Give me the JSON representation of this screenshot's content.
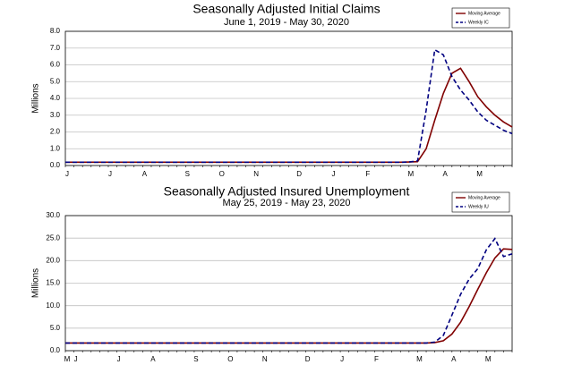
{
  "chart_data": [
    {
      "type": "line",
      "title": "Seasonally Adjusted Initial Claims",
      "subtitle": "June 1, 2019 - May 30, 2020",
      "y_label": "Millions",
      "categories": [
        "J",
        null,
        null,
        null,
        null,
        "J",
        null,
        null,
        null,
        "A",
        null,
        null,
        null,
        null,
        "S",
        null,
        null,
        null,
        "O",
        null,
        null,
        null,
        "N",
        null,
        null,
        null,
        null,
        "D",
        null,
        null,
        null,
        "J",
        null,
        null,
        null,
        "F",
        null,
        null,
        null,
        null,
        "M",
        null,
        null,
        null,
        "A",
        null,
        null,
        null,
        "M",
        null,
        null,
        null,
        null
      ],
      "series": [
        {
          "name": "Moving Average",
          "color": "#800000",
          "dash": false,
          "values": [
            0.2,
            0.2,
            0.2,
            0.2,
            0.2,
            0.2,
            0.2,
            0.2,
            0.2,
            0.2,
            0.2,
            0.2,
            0.2,
            0.2,
            0.2,
            0.2,
            0.2,
            0.2,
            0.2,
            0.2,
            0.2,
            0.2,
            0.2,
            0.2,
            0.2,
            0.2,
            0.2,
            0.2,
            0.2,
            0.2,
            0.2,
            0.2,
            0.2,
            0.2,
            0.2,
            0.2,
            0.2,
            0.2,
            0.2,
            0.2,
            0.21,
            0.23,
            1.0,
            2.7,
            4.3,
            5.5,
            5.8,
            5.0,
            4.1,
            3.5,
            3.0,
            2.6,
            2.3
          ]
        },
        {
          "name": "Weekly IC",
          "color": "#000080",
          "dash": true,
          "values": [
            0.2,
            0.2,
            0.2,
            0.2,
            0.2,
            0.2,
            0.2,
            0.2,
            0.2,
            0.2,
            0.2,
            0.2,
            0.2,
            0.2,
            0.2,
            0.2,
            0.2,
            0.2,
            0.2,
            0.2,
            0.2,
            0.2,
            0.2,
            0.2,
            0.2,
            0.2,
            0.2,
            0.2,
            0.2,
            0.2,
            0.2,
            0.2,
            0.2,
            0.2,
            0.2,
            0.2,
            0.2,
            0.2,
            0.2,
            0.2,
            0.21,
            0.28,
            3.3,
            6.9,
            6.6,
            5.3,
            4.5,
            3.9,
            3.2,
            2.7,
            2.4,
            2.1,
            1.9
          ]
        }
      ],
      "ylim": [
        0,
        8
      ],
      "yticks": [
        {
          "value": 0,
          "label": "0.0"
        },
        {
          "value": 1,
          "label": "1.0"
        },
        {
          "value": 2,
          "label": "2.0"
        },
        {
          "value": 3,
          "label": "3.0"
        },
        {
          "value": 4,
          "label": "4.0"
        },
        {
          "value": 5,
          "label": "5.0"
        },
        {
          "value": 6,
          "label": "6.0"
        },
        {
          "value": 7,
          "label": "7.0"
        },
        {
          "value": 8,
          "label": "8.0"
        }
      ],
      "grid": true,
      "legend": "upper right"
    },
    {
      "type": "line",
      "title": "Seasonally Adjusted Insured Unemployment",
      "subtitle": "May 25, 2019 - May 23, 2020",
      "y_label": "Millions",
      "categories": [
        "M",
        "J",
        null,
        null,
        null,
        null,
        "J",
        null,
        null,
        null,
        "A",
        null,
        null,
        null,
        null,
        "S",
        null,
        null,
        null,
        "O",
        null,
        null,
        null,
        "N",
        null,
        null,
        null,
        null,
        "D",
        null,
        null,
        null,
        "J",
        null,
        null,
        null,
        "F",
        null,
        null,
        null,
        null,
        "M",
        null,
        null,
        null,
        "A",
        null,
        null,
        null,
        "M",
        null,
        null,
        null
      ],
      "series": [
        {
          "name": "Moving Average",
          "color": "#800000",
          "dash": false,
          "values": [
            1.7,
            1.7,
            1.7,
            1.7,
            1.7,
            1.7,
            1.7,
            1.7,
            1.7,
            1.7,
            1.7,
            1.7,
            1.7,
            1.7,
            1.7,
            1.7,
            1.7,
            1.7,
            1.7,
            1.7,
            1.7,
            1.7,
            1.7,
            1.7,
            1.7,
            1.7,
            1.7,
            1.7,
            1.7,
            1.7,
            1.7,
            1.7,
            1.7,
            1.7,
            1.7,
            1.7,
            1.7,
            1.7,
            1.7,
            1.7,
            1.7,
            1.7,
            1.7,
            1.8,
            2.2,
            3.7,
            6.3,
            9.8,
            13.6,
            17.3,
            20.6,
            22.6,
            22.5
          ]
        },
        {
          "name": "Weekly IU",
          "color": "#000080",
          "dash": true,
          "values": [
            1.7,
            1.7,
            1.7,
            1.7,
            1.7,
            1.7,
            1.7,
            1.7,
            1.7,
            1.7,
            1.7,
            1.7,
            1.7,
            1.7,
            1.7,
            1.7,
            1.7,
            1.7,
            1.7,
            1.7,
            1.7,
            1.7,
            1.7,
            1.7,
            1.7,
            1.7,
            1.7,
            1.7,
            1.7,
            1.7,
            1.7,
            1.7,
            1.7,
            1.7,
            1.7,
            1.7,
            1.7,
            1.7,
            1.7,
            1.7,
            1.7,
            1.7,
            1.7,
            1.9,
            3.4,
            7.9,
            12.5,
            15.9,
            18.2,
            22.4,
            24.9,
            20.9,
            21.5
          ]
        }
      ],
      "ylim": [
        0,
        30
      ],
      "yticks": [
        {
          "value": 0,
          "label": "0.0"
        },
        {
          "value": 5,
          "label": "5.0"
        },
        {
          "value": 10,
          "label": "10.0"
        },
        {
          "value": 15,
          "label": "15.0"
        },
        {
          "value": 20,
          "label": "20.0"
        },
        {
          "value": 25,
          "label": "25.0"
        },
        {
          "value": 30,
          "label": "30.0"
        }
      ],
      "grid": true,
      "legend": "upper right"
    }
  ]
}
